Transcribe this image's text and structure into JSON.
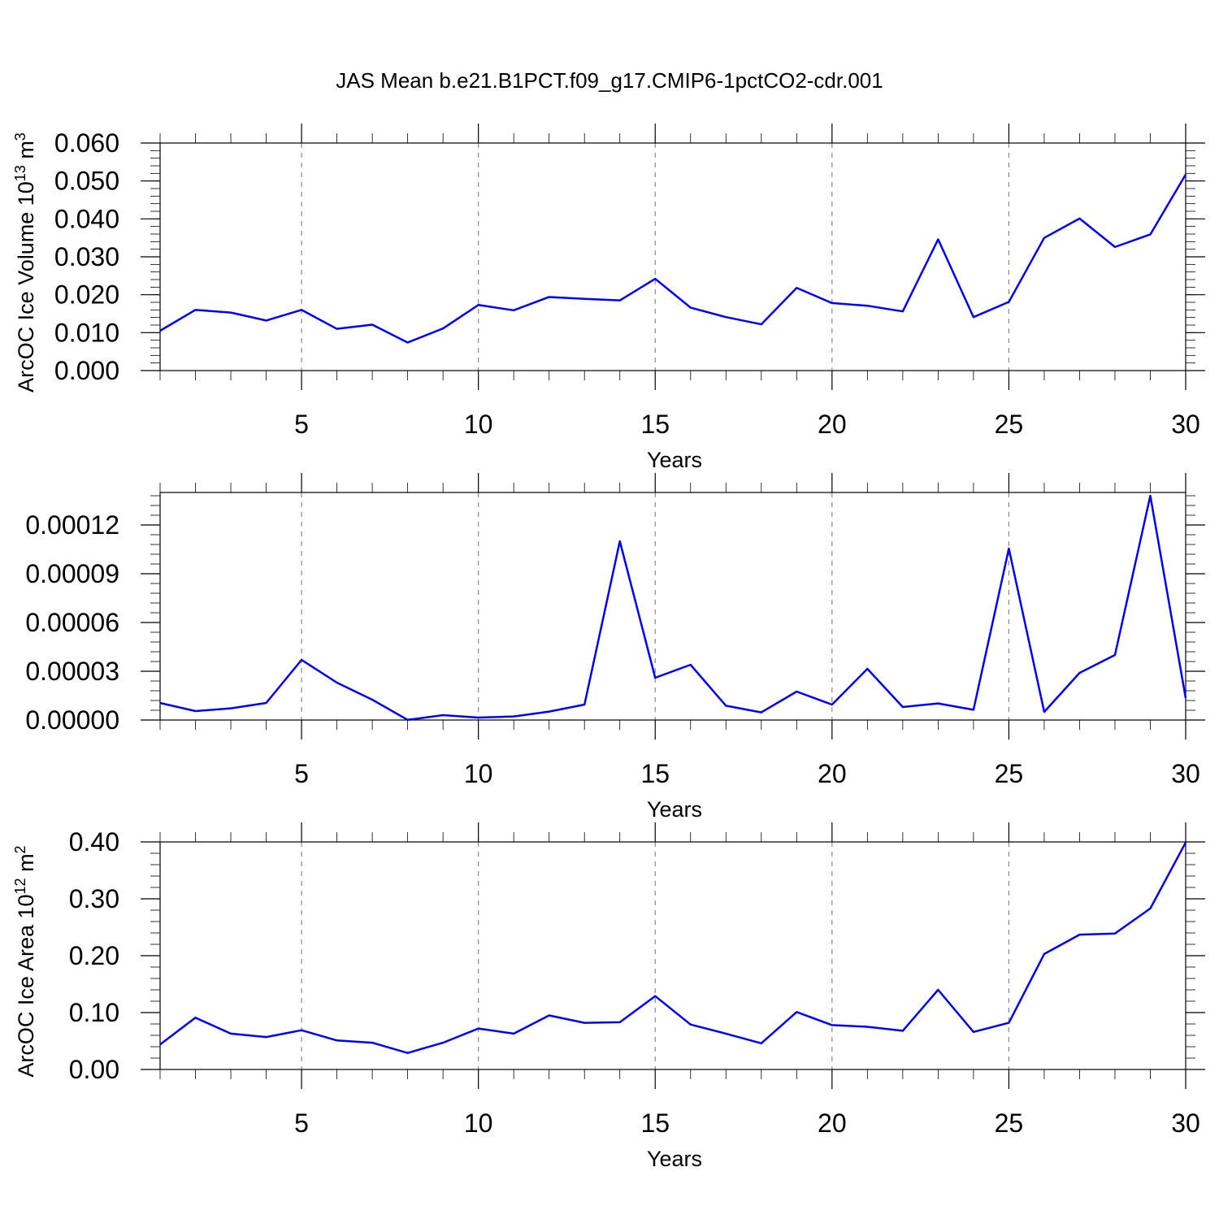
{
  "title": "JAS Mean b.e21.B1PCT.f09_g17.CMIP6-1pctCO2-cdr.001",
  "line_color": "#0000ff",
  "chart_data": [
    {
      "type": "line",
      "ylabel_main": "ArcOC Ice Volume 10",
      "ylabel_sup": "13",
      "ylabel_unit": " m",
      "ylabel_unit_sup": "3",
      "xlabel": "Years",
      "xlim": [
        1,
        30
      ],
      "ylim": [
        0,
        0.06
      ],
      "xticks": [
        5,
        10,
        15,
        20,
        25,
        30
      ],
      "yticks": [
        "0.000",
        "0.010",
        "0.020",
        "0.030",
        "0.040",
        "0.050",
        "0.060"
      ],
      "ytick_values": [
        0,
        0.01,
        0.02,
        0.03,
        0.04,
        0.05,
        0.06
      ],
      "grid": "vertical-dashed",
      "x": [
        1,
        2,
        3,
        4,
        5,
        6,
        7,
        8,
        9,
        10,
        11,
        12,
        13,
        14,
        15,
        16,
        17,
        18,
        19,
        20,
        21,
        22,
        23,
        24,
        25,
        26,
        27,
        28,
        29,
        30
      ],
      "series": [
        {
          "values": [
            0.0105,
            0.016,
            0.0153,
            0.0132,
            0.016,
            0.011,
            0.0121,
            0.0074,
            0.0111,
            0.0173,
            0.0159,
            0.0194,
            0.0189,
            0.0185,
            0.0242,
            0.0166,
            0.0141,
            0.0122,
            0.0218,
            0.0178,
            0.0171,
            0.0156,
            0.0346,
            0.0141,
            0.0181,
            0.035,
            0.0401,
            0.0326,
            0.0359,
            0.0517
          ]
        }
      ]
    },
    {
      "type": "line",
      "ylabel_main": "",
      "ylabel_sup": "",
      "ylabel_unit": "",
      "ylabel_unit_sup": "",
      "xlabel": "Years",
      "xlim": [
        1,
        30
      ],
      "ylim": [
        0,
        0.00014
      ],
      "xticks": [
        5,
        10,
        15,
        20,
        25,
        30
      ],
      "yticks": [
        "0.00000",
        "0.00003",
        "0.00006",
        "0.00009",
        "0.00012"
      ],
      "ytick_values": [
        0,
        3e-05,
        6e-05,
        9e-05,
        0.00012
      ],
      "grid": "vertical-dashed",
      "x": [
        1,
        2,
        3,
        4,
        5,
        6,
        7,
        8,
        9,
        10,
        11,
        12,
        13,
        14,
        15,
        16,
        17,
        18,
        19,
        20,
        21,
        22,
        23,
        24,
        25,
        26,
        27,
        28,
        29,
        30
      ],
      "series": [
        {
          "values": [
            1.05e-05,
            5.5e-06,
            7.2e-06,
            1.05e-05,
            3.7e-05,
            2.3e-05,
            1.25e-05,
            1e-07,
            3e-06,
            1.5e-06,
            2.2e-06,
            5.2e-06,
            9.5e-06,
            0.00011,
            2.6e-05,
            3.4e-05,
            8.8e-06,
            4.7e-06,
            1.75e-05,
            9.5e-06,
            3.15e-05,
            8e-06,
            1.02e-05,
            6.3e-06,
            0.0001055,
            5e-06,
            2.9e-05,
            4e-05,
            0.000138,
            1.35e-05
          ]
        }
      ]
    },
    {
      "type": "line",
      "ylabel_main": "ArcOC Ice Area 10",
      "ylabel_sup": "12",
      "ylabel_unit": " m",
      "ylabel_unit_sup": "2",
      "xlabel": "Years",
      "xlim": [
        1,
        30
      ],
      "ylim": [
        0,
        0.4
      ],
      "xticks": [
        5,
        10,
        15,
        20,
        25,
        30
      ],
      "yticks": [
        "0.00",
        "0.10",
        "0.20",
        "0.30",
        "0.40"
      ],
      "ytick_values": [
        0,
        0.1,
        0.2,
        0.3,
        0.4
      ],
      "grid": "vertical-dashed",
      "x": [
        1,
        2,
        3,
        4,
        5,
        6,
        7,
        8,
        9,
        10,
        11,
        12,
        13,
        14,
        15,
        16,
        17,
        18,
        19,
        20,
        21,
        22,
        23,
        24,
        25,
        26,
        27,
        28,
        29,
        30
      ],
      "series": [
        {
          "values": [
            0.044,
            0.091,
            0.063,
            0.057,
            0.069,
            0.051,
            0.047,
            0.029,
            0.047,
            0.072,
            0.063,
            0.095,
            0.082,
            0.083,
            0.129,
            0.079,
            0.063,
            0.046,
            0.101,
            0.078,
            0.075,
            0.068,
            0.14,
            0.066,
            0.082,
            0.203,
            0.237,
            0.239,
            0.283,
            0.399
          ]
        }
      ]
    }
  ]
}
